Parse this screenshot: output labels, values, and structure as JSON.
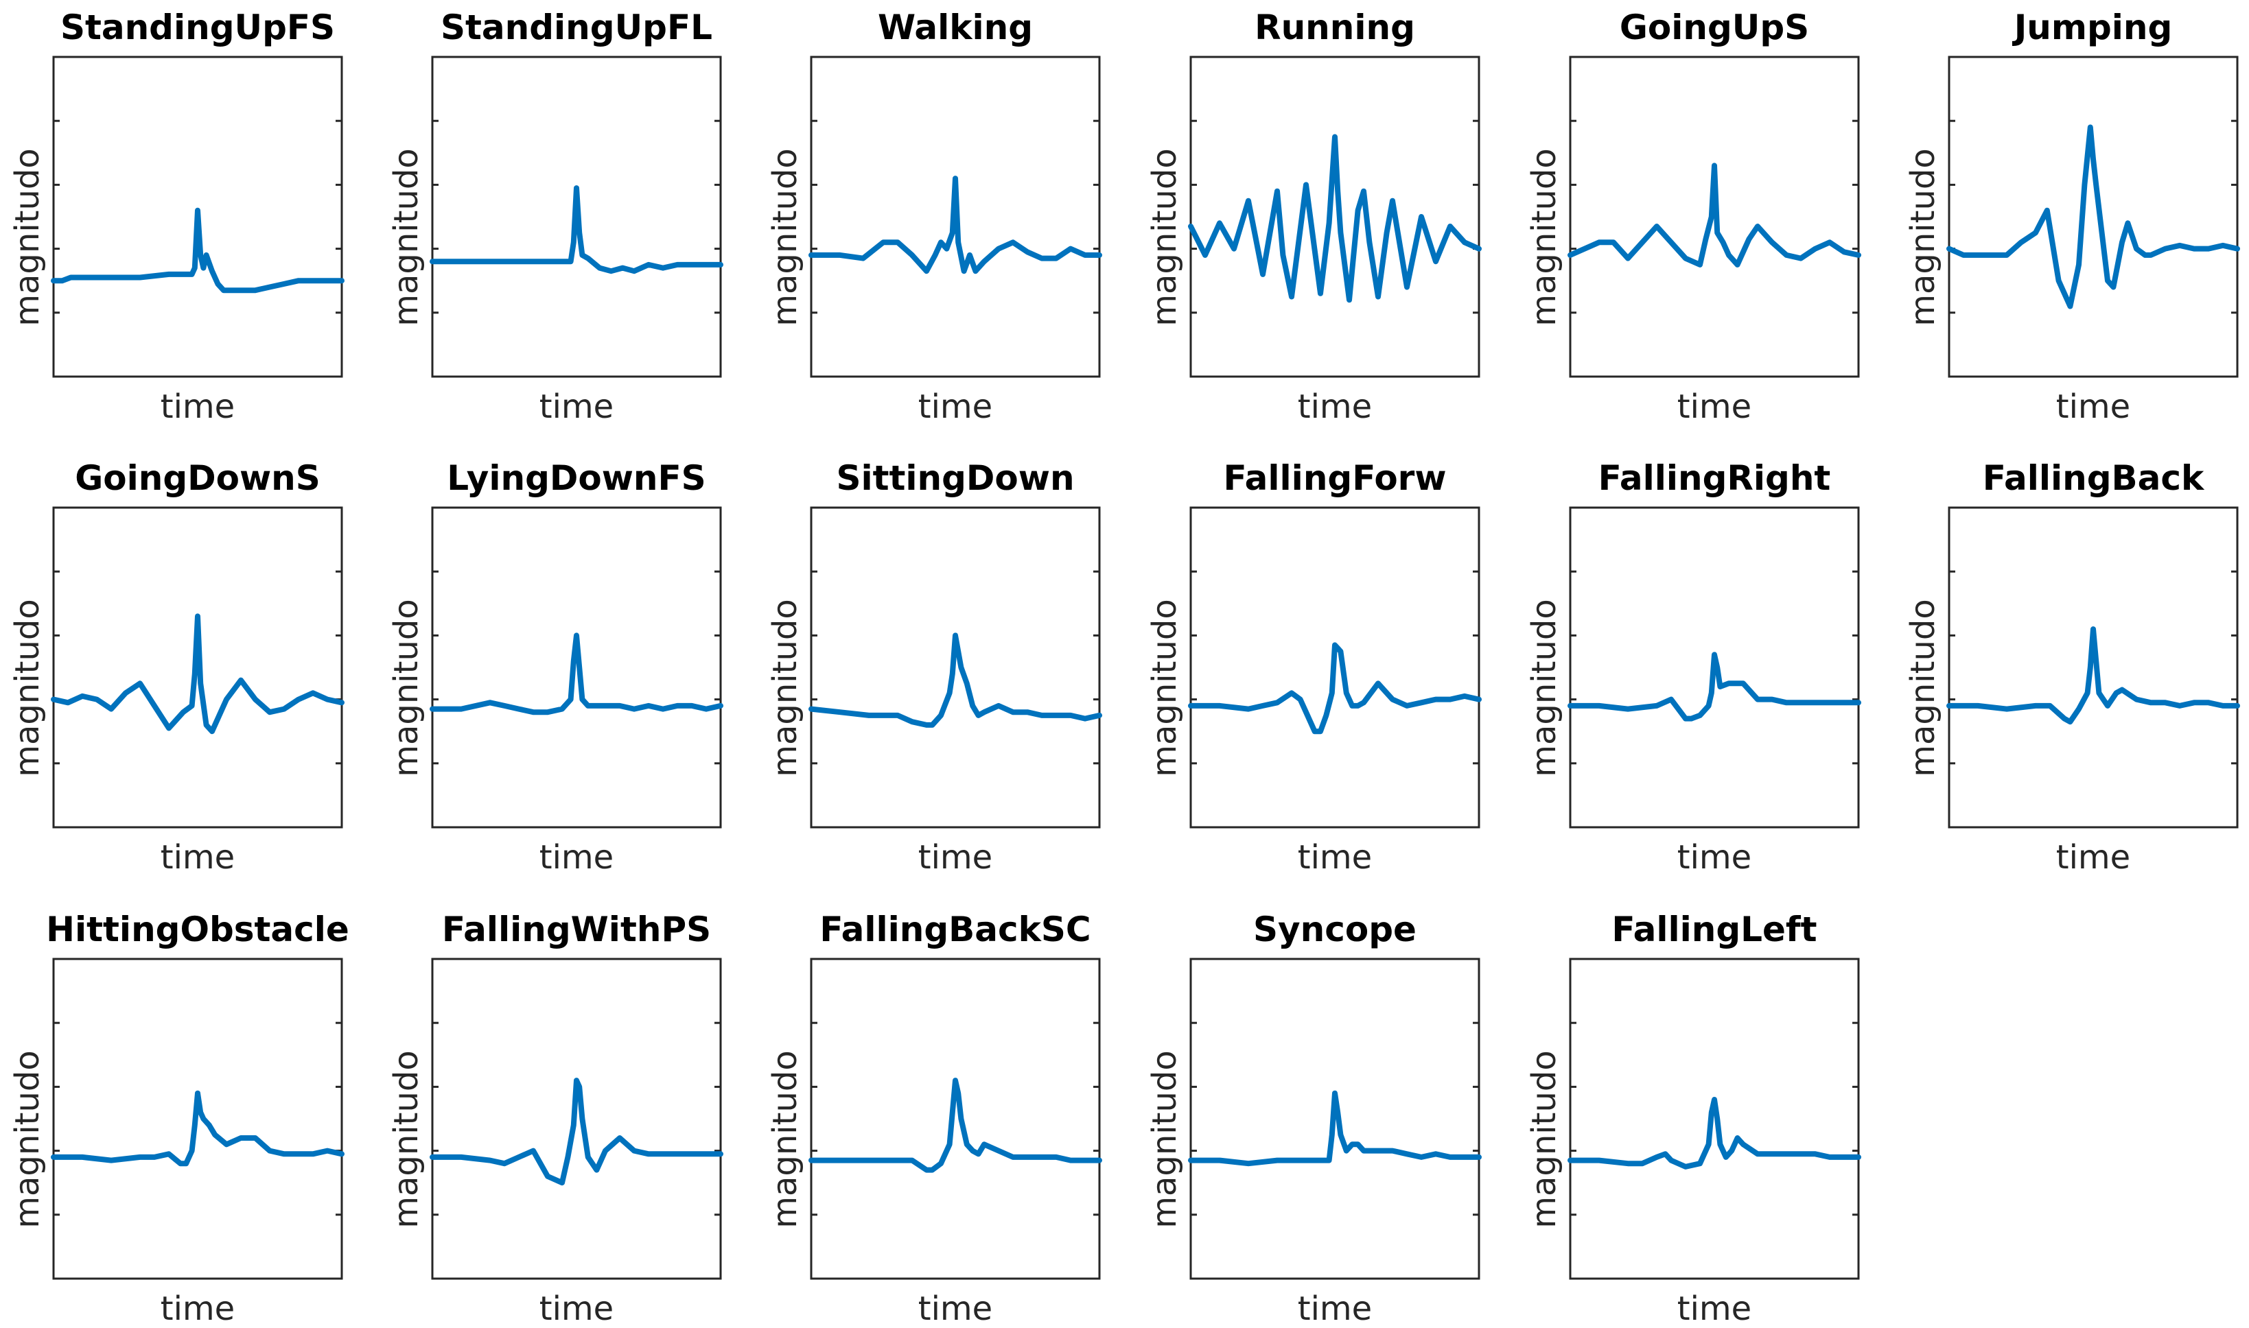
{
  "colors": {
    "series": "#0072BD",
    "axes": "#262626",
    "title": "#000000"
  },
  "chart_data": [
    {
      "type": "line",
      "title": "StandingUpFS",
      "xlabel": "time",
      "ylabel": "magnitudo",
      "grid": false,
      "ylim": [
        0,
        1
      ],
      "x": [
        0,
        3,
        6,
        10,
        15,
        20,
        30,
        40,
        48,
        49,
        50,
        51,
        52,
        53,
        55,
        57,
        59,
        62,
        65,
        70,
        75,
        80,
        85,
        90,
        95,
        100
      ],
      "y": [
        0.3,
        0.3,
        0.31,
        0.31,
        0.31,
        0.31,
        0.31,
        0.32,
        0.32,
        0.34,
        0.52,
        0.38,
        0.34,
        0.38,
        0.33,
        0.29,
        0.27,
        0.27,
        0.27,
        0.27,
        0.28,
        0.29,
        0.3,
        0.3,
        0.3,
        0.3
      ]
    },
    {
      "type": "line",
      "title": "StandingUpFL",
      "xlabel": "time",
      "ylabel": "magnitudo",
      "grid": false,
      "ylim": [
        0,
        1
      ],
      "x": [
        0,
        10,
        20,
        30,
        40,
        48,
        49,
        50,
        51,
        52,
        54,
        58,
        62,
        66,
        70,
        75,
        80,
        85,
        90,
        95,
        100
      ],
      "y": [
        0.36,
        0.36,
        0.36,
        0.36,
        0.36,
        0.36,
        0.42,
        0.59,
        0.45,
        0.38,
        0.37,
        0.34,
        0.33,
        0.34,
        0.33,
        0.35,
        0.34,
        0.35,
        0.35,
        0.35,
        0.35
      ]
    },
    {
      "type": "line",
      "title": "Walking",
      "xlabel": "time",
      "ylabel": "magnitudo",
      "grid": false,
      "ylim": [
        0,
        1
      ],
      "x": [
        0,
        10,
        18,
        25,
        30,
        35,
        40,
        43,
        45,
        47,
        49,
        50,
        51,
        53,
        55,
        57,
        60,
        65,
        70,
        75,
        80,
        85,
        90,
        95,
        100
      ],
      "y": [
        0.38,
        0.38,
        0.37,
        0.42,
        0.42,
        0.38,
        0.33,
        0.38,
        0.42,
        0.4,
        0.45,
        0.62,
        0.42,
        0.33,
        0.38,
        0.33,
        0.36,
        0.4,
        0.42,
        0.39,
        0.37,
        0.37,
        0.4,
        0.38,
        0.38
      ]
    },
    {
      "type": "line",
      "title": "Running",
      "xlabel": "time",
      "ylabel": "magnitudo",
      "grid": false,
      "ylim": [
        0,
        1
      ],
      "x": [
        0,
        5,
        10,
        15,
        20,
        25,
        30,
        32,
        35,
        40,
        45,
        48,
        50,
        51,
        52,
        55,
        58,
        60,
        62,
        65,
        68,
        70,
        75,
        80,
        85,
        90,
        95,
        100
      ],
      "y": [
        0.47,
        0.38,
        0.48,
        0.4,
        0.55,
        0.32,
        0.58,
        0.38,
        0.25,
        0.6,
        0.26,
        0.48,
        0.75,
        0.58,
        0.45,
        0.24,
        0.52,
        0.58,
        0.42,
        0.25,
        0.45,
        0.55,
        0.28,
        0.5,
        0.36,
        0.47,
        0.42,
        0.4
      ]
    },
    {
      "type": "line",
      "title": "GoingUpS",
      "xlabel": "time",
      "ylabel": "magnitudo",
      "grid": false,
      "ylim": [
        0,
        1
      ],
      "x": [
        0,
        10,
        15,
        20,
        25,
        30,
        35,
        40,
        45,
        47,
        49,
        50,
        51,
        53,
        55,
        58,
        62,
        65,
        70,
        75,
        80,
        85,
        90,
        95,
        100
      ],
      "y": [
        0.38,
        0.42,
        0.42,
        0.37,
        0.42,
        0.47,
        0.42,
        0.37,
        0.35,
        0.43,
        0.5,
        0.66,
        0.45,
        0.42,
        0.38,
        0.35,
        0.43,
        0.47,
        0.42,
        0.38,
        0.37,
        0.4,
        0.42,
        0.39,
        0.38
      ]
    },
    {
      "type": "line",
      "title": "Jumping",
      "xlabel": "time",
      "ylabel": "magnitudo",
      "grid": false,
      "ylim": [
        0,
        1
      ],
      "x": [
        0,
        5,
        10,
        15,
        20,
        25,
        30,
        34,
        38,
        42,
        45,
        47,
        49,
        50,
        51,
        53,
        55,
        57,
        60,
        62,
        65,
        68,
        70,
        75,
        80,
        85,
        90,
        95,
        100
      ],
      "y": [
        0.4,
        0.38,
        0.38,
        0.38,
        0.38,
        0.42,
        0.45,
        0.52,
        0.3,
        0.22,
        0.35,
        0.6,
        0.78,
        0.68,
        0.6,
        0.45,
        0.3,
        0.28,
        0.42,
        0.48,
        0.4,
        0.38,
        0.38,
        0.4,
        0.41,
        0.4,
        0.4,
        0.41,
        0.4
      ]
    },
    {
      "type": "line",
      "title": "GoingDownS",
      "xlabel": "time",
      "ylabel": "magnitudo",
      "grid": false,
      "ylim": [
        0,
        1
      ],
      "x": [
        0,
        5,
        10,
        15,
        20,
        25,
        30,
        35,
        40,
        45,
        48,
        49,
        50,
        51,
        53,
        55,
        58,
        60,
        65,
        70,
        75,
        80,
        85,
        90,
        95,
        100
      ],
      "y": [
        0.4,
        0.39,
        0.41,
        0.4,
        0.37,
        0.42,
        0.45,
        0.38,
        0.31,
        0.36,
        0.38,
        0.48,
        0.66,
        0.45,
        0.32,
        0.3,
        0.36,
        0.4,
        0.46,
        0.4,
        0.36,
        0.37,
        0.4,
        0.42,
        0.4,
        0.39
      ]
    },
    {
      "type": "line",
      "title": "LyingDownFS",
      "xlabel": "time",
      "ylabel": "magnitudo",
      "grid": false,
      "ylim": [
        0,
        1
      ],
      "x": [
        0,
        10,
        20,
        25,
        30,
        35,
        40,
        45,
        48,
        49,
        50,
        51,
        52,
        54,
        58,
        62,
        65,
        70,
        75,
        80,
        85,
        90,
        95,
        100
      ],
      "y": [
        0.37,
        0.37,
        0.39,
        0.38,
        0.37,
        0.36,
        0.36,
        0.37,
        0.4,
        0.52,
        0.6,
        0.5,
        0.4,
        0.38,
        0.38,
        0.38,
        0.38,
        0.37,
        0.38,
        0.37,
        0.38,
        0.38,
        0.37,
        0.38
      ]
    },
    {
      "type": "line",
      "title": "SittingDown",
      "xlabel": "time",
      "ylabel": "magnitudo",
      "grid": false,
      "ylim": [
        0,
        1
      ],
      "x": [
        0,
        10,
        20,
        30,
        35,
        40,
        42,
        45,
        48,
        49,
        50,
        51,
        52,
        54,
        56,
        58,
        60,
        65,
        70,
        75,
        80,
        85,
        90,
        95,
        100
      ],
      "y": [
        0.37,
        0.36,
        0.35,
        0.35,
        0.33,
        0.32,
        0.32,
        0.35,
        0.42,
        0.48,
        0.6,
        0.55,
        0.5,
        0.45,
        0.38,
        0.35,
        0.36,
        0.38,
        0.36,
        0.36,
        0.35,
        0.35,
        0.35,
        0.34,
        0.35
      ]
    },
    {
      "type": "line",
      "title": "FallingForw",
      "xlabel": "time",
      "ylabel": "magnitudo",
      "grid": false,
      "ylim": [
        0,
        1
      ],
      "x": [
        0,
        10,
        20,
        25,
        30,
        35,
        38,
        40,
        43,
        45,
        47,
        49,
        50,
        51,
        52,
        54,
        56,
        58,
        60,
        65,
        70,
        75,
        80,
        85,
        90,
        95,
        100
      ],
      "y": [
        0.38,
        0.38,
        0.37,
        0.38,
        0.39,
        0.42,
        0.4,
        0.36,
        0.3,
        0.3,
        0.35,
        0.42,
        0.57,
        0.56,
        0.55,
        0.42,
        0.38,
        0.38,
        0.39,
        0.45,
        0.4,
        0.38,
        0.39,
        0.4,
        0.4,
        0.41,
        0.4
      ]
    },
    {
      "type": "line",
      "title": "FallingRight",
      "xlabel": "time",
      "ylabel": "magnitudo",
      "grid": false,
      "ylim": [
        0,
        1
      ],
      "x": [
        0,
        10,
        20,
        30,
        35,
        40,
        42,
        45,
        48,
        49,
        50,
        51,
        52,
        55,
        60,
        65,
        70,
        75,
        80,
        85,
        90,
        95,
        100
      ],
      "y": [
        0.38,
        0.38,
        0.37,
        0.38,
        0.4,
        0.34,
        0.34,
        0.35,
        0.38,
        0.42,
        0.54,
        0.5,
        0.44,
        0.45,
        0.45,
        0.4,
        0.4,
        0.39,
        0.39,
        0.39,
        0.39,
        0.39,
        0.39
      ]
    },
    {
      "type": "line",
      "title": "FallingBack",
      "xlabel": "time",
      "ylabel": "magnitudo",
      "grid": false,
      "ylim": [
        0,
        1
      ],
      "x": [
        0,
        10,
        20,
        30,
        35,
        40,
        42,
        45,
        48,
        49,
        50,
        51,
        52,
        55,
        58,
        60,
        65,
        70,
        75,
        80,
        85,
        90,
        95,
        100
      ],
      "y": [
        0.38,
        0.38,
        0.37,
        0.38,
        0.38,
        0.34,
        0.33,
        0.37,
        0.42,
        0.5,
        0.62,
        0.52,
        0.42,
        0.38,
        0.42,
        0.43,
        0.4,
        0.39,
        0.39,
        0.38,
        0.39,
        0.39,
        0.38,
        0.38
      ]
    },
    {
      "type": "line",
      "title": "HittingObstacle",
      "xlabel": "time",
      "ylabel": "magnitudo",
      "grid": false,
      "ylim": [
        0,
        1
      ],
      "x": [
        0,
        10,
        20,
        30,
        35,
        40,
        44,
        46,
        48,
        49,
        50,
        51,
        52,
        54,
        56,
        60,
        65,
        70,
        75,
        80,
        85,
        90,
        95,
        100
      ],
      "y": [
        0.38,
        0.38,
        0.37,
        0.38,
        0.38,
        0.39,
        0.36,
        0.36,
        0.4,
        0.48,
        0.58,
        0.52,
        0.5,
        0.48,
        0.45,
        0.42,
        0.44,
        0.44,
        0.4,
        0.39,
        0.39,
        0.39,
        0.4,
        0.39
      ]
    },
    {
      "type": "line",
      "title": "FallingWithPS",
      "xlabel": "time",
      "ylabel": "magnitudo",
      "grid": false,
      "ylim": [
        0,
        1
      ],
      "x": [
        0,
        10,
        20,
        25,
        30,
        35,
        40,
        45,
        47,
        49,
        50,
        51,
        52,
        54,
        57,
        60,
        65,
        70,
        75,
        80,
        85,
        90,
        95,
        100
      ],
      "y": [
        0.38,
        0.38,
        0.37,
        0.36,
        0.38,
        0.4,
        0.32,
        0.3,
        0.38,
        0.48,
        0.62,
        0.6,
        0.5,
        0.38,
        0.34,
        0.4,
        0.44,
        0.4,
        0.39,
        0.39,
        0.39,
        0.39,
        0.39,
        0.39
      ]
    },
    {
      "type": "line",
      "title": "FallingBackSC",
      "xlabel": "time",
      "ylabel": "magnitudo",
      "grid": false,
      "ylim": [
        0,
        1
      ],
      "x": [
        0,
        10,
        20,
        30,
        35,
        40,
        42,
        45,
        48,
        49,
        50,
        51,
        52,
        54,
        56,
        58,
        60,
        65,
        70,
        75,
        80,
        85,
        90,
        95,
        100
      ],
      "y": [
        0.37,
        0.37,
        0.37,
        0.37,
        0.37,
        0.34,
        0.34,
        0.36,
        0.42,
        0.52,
        0.62,
        0.58,
        0.5,
        0.42,
        0.4,
        0.39,
        0.42,
        0.4,
        0.38,
        0.38,
        0.38,
        0.38,
        0.37,
        0.37,
        0.37
      ]
    },
    {
      "type": "line",
      "title": "Syncope",
      "xlabel": "time",
      "ylabel": "magnitudo",
      "grid": false,
      "ylim": [
        0,
        1
      ],
      "x": [
        0,
        10,
        20,
        30,
        35,
        40,
        45,
        48,
        49,
        50,
        51,
        52,
        54,
        56,
        58,
        60,
        65,
        70,
        75,
        80,
        85,
        90,
        95,
        100
      ],
      "y": [
        0.37,
        0.37,
        0.36,
        0.37,
        0.37,
        0.37,
        0.37,
        0.37,
        0.45,
        0.58,
        0.52,
        0.45,
        0.4,
        0.42,
        0.42,
        0.4,
        0.4,
        0.4,
        0.39,
        0.38,
        0.39,
        0.38,
        0.38,
        0.38
      ]
    },
    {
      "type": "line",
      "title": "FallingLeft",
      "xlabel": "time",
      "ylabel": "magnitudo",
      "grid": false,
      "ylim": [
        0,
        1
      ],
      "x": [
        0,
        10,
        20,
        25,
        30,
        33,
        35,
        40,
        45,
        48,
        49,
        50,
        51,
        52,
        54,
        56,
        58,
        60,
        65,
        70,
        75,
        80,
        85,
        90,
        95,
        100
      ],
      "y": [
        0.37,
        0.37,
        0.36,
        0.36,
        0.38,
        0.39,
        0.37,
        0.35,
        0.36,
        0.42,
        0.52,
        0.56,
        0.5,
        0.42,
        0.38,
        0.4,
        0.44,
        0.42,
        0.39,
        0.39,
        0.39,
        0.39,
        0.39,
        0.38,
        0.38,
        0.38
      ]
    }
  ]
}
